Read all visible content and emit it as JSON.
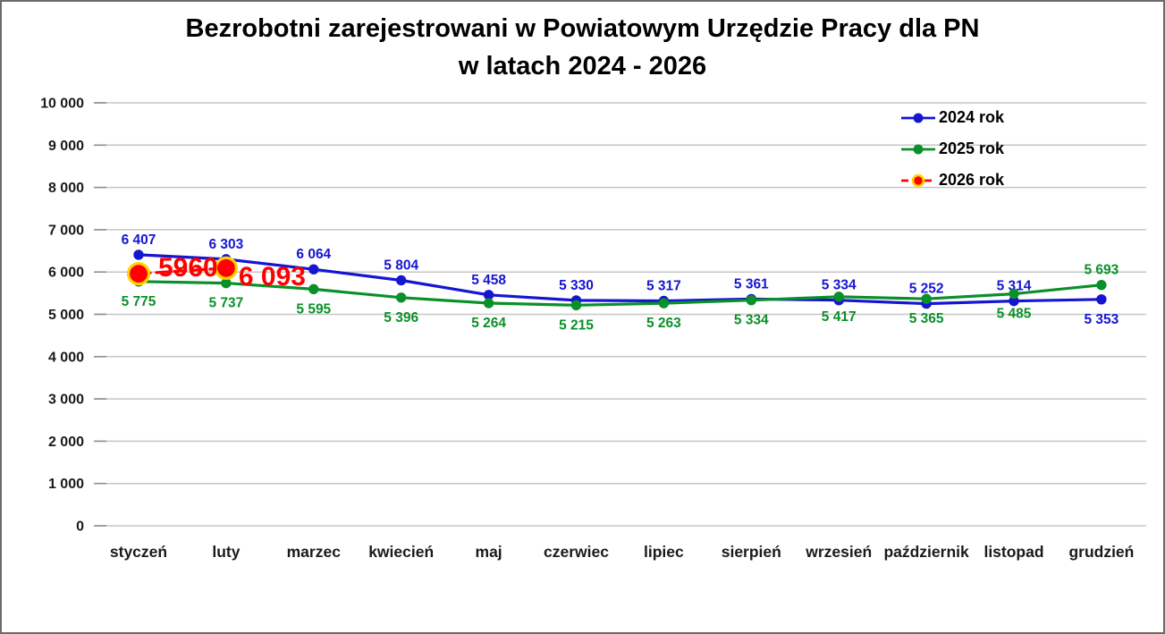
{
  "title": {
    "line1": "Bezrobotni zarejestrowani w Powiatowym Urzędzie Pracy dla PN",
    "line2": "w latach 2024 - 2026"
  },
  "chart_data": {
    "type": "line",
    "categories": [
      "styczeń",
      "luty",
      "marzec",
      "kwiecień",
      "maj",
      "czerwiec",
      "lipiec",
      "sierpień",
      "wrzesień",
      "październik",
      "listopad",
      "grudzień"
    ],
    "ylim": [
      0,
      10000
    ],
    "ytick_step": 1000,
    "ytick_labels": [
      "0",
      "1 000",
      "2 000",
      "3 000",
      "4 000",
      "5 000",
      "6 000",
      "7 000",
      "8 000",
      "9 000",
      "10 000"
    ],
    "grid": true,
    "legend_position": "top-right",
    "colors": {
      "grid": "#c6c6c6",
      "tick": "#8f8f8f",
      "axis_text": "#1a1a1a"
    },
    "series": [
      {
        "name": "2024 rok",
        "color": "#1515d2",
        "marker": "circle",
        "dashed": false,
        "values": [
          6407,
          6303,
          6064,
          5804,
          5458,
          5330,
          5317,
          5361,
          5334,
          5252,
          5314,
          5353
        ],
        "labels": [
          "6 407",
          "6 303",
          "6 064",
          "5 804",
          "5 458",
          "5 330",
          "5 317",
          "5 361",
          "5 334",
          "5 252",
          "5 314",
          "5 353"
        ],
        "label_side": [
          "above",
          "above",
          "above",
          "above",
          "above",
          "above",
          "above",
          "above",
          "above",
          "above",
          "above",
          "below"
        ]
      },
      {
        "name": "2025 rok",
        "color": "#0a9029",
        "marker": "circle",
        "dashed": false,
        "values": [
          5775,
          5737,
          5595,
          5396,
          5264,
          5215,
          5263,
          5334,
          5417,
          5365,
          5485,
          5693
        ],
        "labels": [
          "5 775",
          "5 737",
          "5 595",
          "5 396",
          "5 264",
          "5 215",
          "5 263",
          "5 334",
          "5 417",
          "5 365",
          "5 485",
          "5 693"
        ],
        "label_side": [
          "below",
          "below",
          "below",
          "below",
          "below",
          "below",
          "below",
          "below",
          "below",
          "below",
          "below",
          "above"
        ]
      },
      {
        "name": "2026 rok",
        "color": "#ff0000",
        "marker": "circle",
        "marker_ring": "#ffd400",
        "dashed": true,
        "values": [
          5960,
          6093,
          null,
          null,
          null,
          null,
          null,
          null,
          null,
          null,
          null,
          null
        ],
        "labels": [
          "5960",
          "6 093"
        ],
        "label_side": [
          "beside",
          "beside"
        ]
      }
    ]
  }
}
